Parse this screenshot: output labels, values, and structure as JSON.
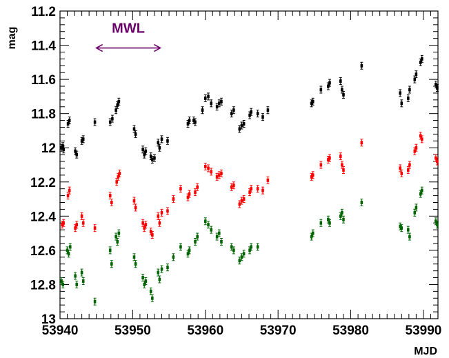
{
  "chart_data": {
    "type": "scatter",
    "title": "",
    "xlabel": "MJD",
    "ylabel": "mag",
    "xlim": [
      53940,
      53992
    ],
    "ylim": [
      11.2,
      13.0
    ],
    "y_inverted": true,
    "grid": false,
    "x_ticks": [
      "53940",
      "53950",
      "53960",
      "53970",
      "53980",
      "53990"
    ],
    "y_ticks": [
      "11.2",
      "11.4",
      "11.6",
      "11.8",
      "12",
      "12.2",
      "12.4",
      "12.6",
      "12.8",
      "13"
    ],
    "annotation": {
      "text": "MWL",
      "x_start": 53945.0,
      "x_end": 53953.8,
      "y": 11.4,
      "color": "#6b006b"
    },
    "series": [
      {
        "color": "#000000",
        "points": [
          [
            53940.2,
            12.0
          ],
          [
            53940.4,
            11.99
          ],
          [
            53940.5,
            12.01
          ],
          [
            53941.1,
            11.86
          ],
          [
            53941.3,
            11.84
          ],
          [
            53942.1,
            12.02
          ],
          [
            53942.3,
            12.04
          ],
          [
            53943.0,
            11.96
          ],
          [
            53943.2,
            11.95
          ],
          [
            53944.8,
            11.85
          ],
          [
            53946.9,
            11.85
          ],
          [
            53947.2,
            11.83
          ],
          [
            53947.7,
            11.78
          ],
          [
            53947.9,
            11.75
          ],
          [
            53948.1,
            11.73
          ],
          [
            53950.2,
            11.89
          ],
          [
            53950.4,
            11.92
          ],
          [
            53951.4,
            12.01
          ],
          [
            53951.6,
            12.04
          ],
          [
            53951.8,
            12.02
          ],
          [
            53952.5,
            12.05
          ],
          [
            53952.7,
            12.07
          ],
          [
            53953.0,
            12.06
          ],
          [
            53953.5,
            11.97
          ],
          [
            53953.7,
            12.0
          ],
          [
            53954.0,
            11.95
          ],
          [
            53954.8,
            11.96
          ],
          [
            53957.6,
            11.86
          ],
          [
            53957.8,
            11.84
          ],
          [
            53958.4,
            11.84
          ],
          [
            53958.6,
            11.85
          ],
          [
            53959.6,
            11.78
          ],
          [
            53960.0,
            11.71
          ],
          [
            53960.4,
            11.7
          ],
          [
            53960.8,
            11.74
          ],
          [
            53961.6,
            11.76
          ],
          [
            53961.9,
            11.74
          ],
          [
            53962.2,
            11.73
          ],
          [
            53963.6,
            11.8
          ],
          [
            53963.9,
            11.78
          ],
          [
            53964.7,
            11.89
          ],
          [
            53965.0,
            11.87
          ],
          [
            53965.3,
            11.86
          ],
          [
            53966.1,
            11.81
          ],
          [
            53966.3,
            11.79
          ],
          [
            53967.2,
            11.8
          ],
          [
            53967.9,
            11.82
          ],
          [
            53968.6,
            11.78
          ],
          [
            53974.6,
            11.74
          ],
          [
            53974.8,
            11.73
          ],
          [
            53975.9,
            11.66
          ],
          [
            53976.9,
            11.64
          ],
          [
            53977.1,
            11.62
          ],
          [
            53978.6,
            11.61
          ],
          [
            53978.8,
            11.66
          ],
          [
            53979.0,
            11.69
          ],
          [
            53981.5,
            11.52
          ],
          [
            53986.8,
            11.68
          ],
          [
            53987.0,
            11.74
          ],
          [
            53987.9,
            11.71
          ],
          [
            53988.1,
            11.66
          ],
          [
            53988.8,
            11.6
          ],
          [
            53989.0,
            11.57
          ],
          [
            53989.6,
            11.5
          ],
          [
            53989.8,
            11.48
          ],
          [
            53991.7,
            11.63
          ],
          [
            53991.9,
            11.65
          ]
        ]
      },
      {
        "color": "#ff0000",
        "points": [
          [
            53940.3,
            12.45
          ],
          [
            53940.5,
            12.44
          ],
          [
            53941.1,
            12.28
          ],
          [
            53941.3,
            12.25
          ],
          [
            53942.1,
            12.47
          ],
          [
            53942.3,
            12.45
          ],
          [
            53943.0,
            12.4
          ],
          [
            53943.2,
            12.44
          ],
          [
            53944.8,
            12.47
          ],
          [
            53946.9,
            12.28
          ],
          [
            53947.1,
            12.32
          ],
          [
            53947.8,
            12.2
          ],
          [
            53948.0,
            12.17
          ],
          [
            53948.2,
            12.15
          ],
          [
            53950.2,
            12.31
          ],
          [
            53950.4,
            12.35
          ],
          [
            53951.4,
            12.44
          ],
          [
            53951.6,
            12.47
          ],
          [
            53951.8,
            12.45
          ],
          [
            53952.5,
            12.49
          ],
          [
            53952.7,
            12.51
          ],
          [
            53953.5,
            12.4
          ],
          [
            53953.7,
            12.44
          ],
          [
            53954.0,
            12.38
          ],
          [
            53954.8,
            12.37
          ],
          [
            53955.6,
            12.3
          ],
          [
            53956.6,
            12.24
          ],
          [
            53957.6,
            12.29
          ],
          [
            53957.8,
            12.27
          ],
          [
            53958.6,
            12.26
          ],
          [
            53958.9,
            12.23
          ],
          [
            53960.0,
            12.11
          ],
          [
            53960.4,
            12.12
          ],
          [
            53960.8,
            12.14
          ],
          [
            53961.6,
            12.17
          ],
          [
            53961.9,
            12.16
          ],
          [
            53962.2,
            12.15
          ],
          [
            53963.6,
            12.23
          ],
          [
            53963.9,
            12.22
          ],
          [
            53964.7,
            12.33
          ],
          [
            53965.0,
            12.31
          ],
          [
            53965.3,
            12.3
          ],
          [
            53966.1,
            12.26
          ],
          [
            53966.3,
            12.24
          ],
          [
            53967.2,
            12.24
          ],
          [
            53967.9,
            12.25
          ],
          [
            53968.6,
            12.19
          ],
          [
            53974.6,
            12.17
          ],
          [
            53974.8,
            12.16
          ],
          [
            53975.9,
            12.1
          ],
          [
            53976.9,
            12.07
          ],
          [
            53977.1,
            12.06
          ],
          [
            53978.6,
            12.05
          ],
          [
            53978.8,
            12.1
          ],
          [
            53979.0,
            12.13
          ],
          [
            53981.5,
            11.97
          ],
          [
            53986.8,
            12.12
          ],
          [
            53987.0,
            12.15
          ],
          [
            53987.9,
            12.13
          ],
          [
            53988.1,
            12.1
          ],
          [
            53988.8,
            12.02
          ],
          [
            53989.0,
            12.0
          ],
          [
            53989.6,
            11.93
          ],
          [
            53989.8,
            11.95
          ],
          [
            53991.7,
            12.06
          ],
          [
            53991.9,
            12.08
          ]
        ]
      },
      {
        "color": "#006400",
        "points": [
          [
            53940.2,
            12.78
          ],
          [
            53940.4,
            12.8
          ],
          [
            53941.0,
            12.6
          ],
          [
            53941.2,
            12.62
          ],
          [
            53941.4,
            12.58
          ],
          [
            53942.1,
            12.75
          ],
          [
            53942.3,
            12.8
          ],
          [
            53943.0,
            12.73
          ],
          [
            53943.2,
            12.78
          ],
          [
            53944.8,
            12.9
          ],
          [
            53946.9,
            12.6
          ],
          [
            53947.1,
            12.68
          ],
          [
            53947.7,
            12.52
          ],
          [
            53947.9,
            12.55
          ],
          [
            53948.1,
            12.5
          ],
          [
            53950.2,
            12.64
          ],
          [
            53950.4,
            12.68
          ],
          [
            53951.4,
            12.76
          ],
          [
            53951.6,
            12.8
          ],
          [
            53951.8,
            12.78
          ],
          [
            53952.5,
            12.84
          ],
          [
            53952.7,
            12.88
          ],
          [
            53953.5,
            12.73
          ],
          [
            53953.7,
            12.77
          ],
          [
            53954.0,
            12.71
          ],
          [
            53954.8,
            12.7
          ],
          [
            53955.6,
            12.64
          ],
          [
            53956.6,
            12.58
          ],
          [
            53957.6,
            12.62
          ],
          [
            53957.8,
            12.6
          ],
          [
            53958.6,
            12.55
          ],
          [
            53958.9,
            12.52
          ],
          [
            53960.0,
            12.43
          ],
          [
            53960.4,
            12.45
          ],
          [
            53960.8,
            12.48
          ],
          [
            53961.6,
            12.52
          ],
          [
            53961.9,
            12.5
          ],
          [
            53962.2,
            12.55
          ],
          [
            53963.6,
            12.58
          ],
          [
            53963.9,
            12.6
          ],
          [
            53964.7,
            12.66
          ],
          [
            53965.0,
            12.64
          ],
          [
            53965.3,
            12.62
          ],
          [
            53966.1,
            12.6
          ],
          [
            53966.3,
            12.58
          ],
          [
            53967.2,
            12.58
          ],
          [
            53974.6,
            12.52
          ],
          [
            53974.8,
            12.5
          ],
          [
            53975.9,
            12.44
          ],
          [
            53976.9,
            12.42
          ],
          [
            53977.1,
            12.44
          ],
          [
            53978.6,
            12.4
          ],
          [
            53978.8,
            12.38
          ],
          [
            53979.0,
            12.42
          ],
          [
            53981.5,
            12.32
          ],
          [
            53986.8,
            12.46
          ],
          [
            53987.0,
            12.47
          ],
          [
            53987.9,
            12.48
          ],
          [
            53988.1,
            12.52
          ],
          [
            53988.8,
            12.38
          ],
          [
            53989.0,
            12.35
          ],
          [
            53989.6,
            12.27
          ],
          [
            53989.8,
            12.25
          ],
          [
            53991.7,
            12.43
          ],
          [
            53991.9,
            12.45
          ]
        ]
      }
    ]
  }
}
